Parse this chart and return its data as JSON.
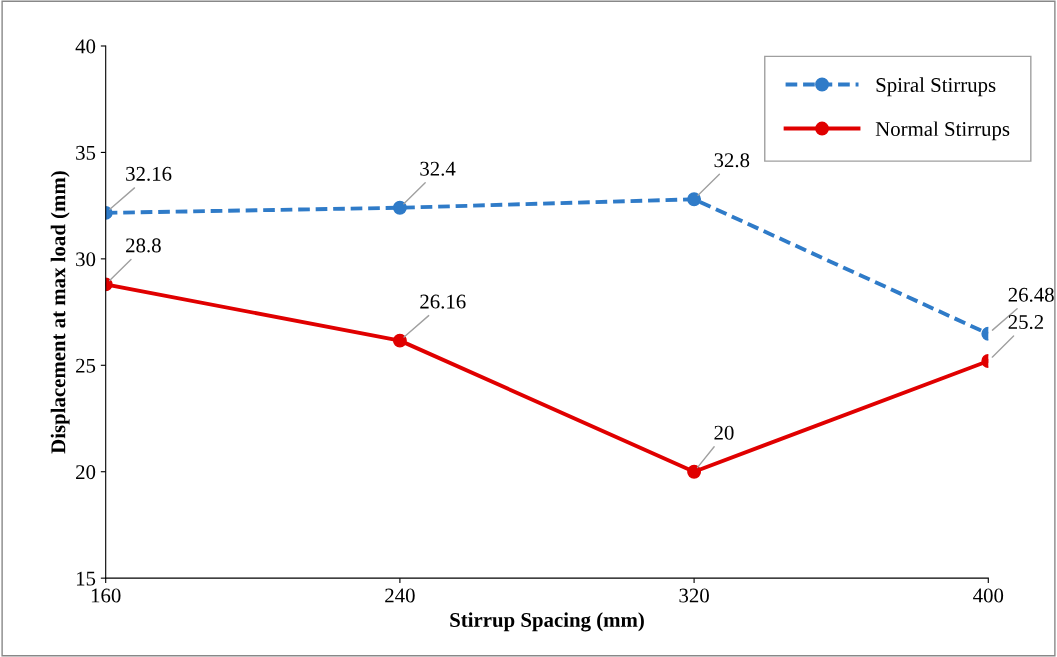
{
  "chart_data": {
    "type": "line",
    "xlabel": "Stirrup Spacing (mm)",
    "ylabel": "Displacement at max load (mm)",
    "categories": [
      "160",
      "240",
      "320",
      "400"
    ],
    "series": [
      {
        "name": "Spiral Stirrups",
        "color": "#2f7bc8",
        "values": [
          32.16,
          32.4,
          32.8,
          26.48
        ],
        "line_style": "dashed"
      },
      {
        "name": "Normal Stirrups",
        "color": "#e00000",
        "values": [
          28.8,
          26.16,
          20,
          25.2
        ],
        "line_style": "solid"
      }
    ],
    "ylim": [
      15,
      40
    ],
    "yticks": [
      15,
      20,
      25,
      30,
      35,
      40
    ],
    "marker": "circle",
    "data_labels": true,
    "grid": false,
    "legend": "top right"
  }
}
